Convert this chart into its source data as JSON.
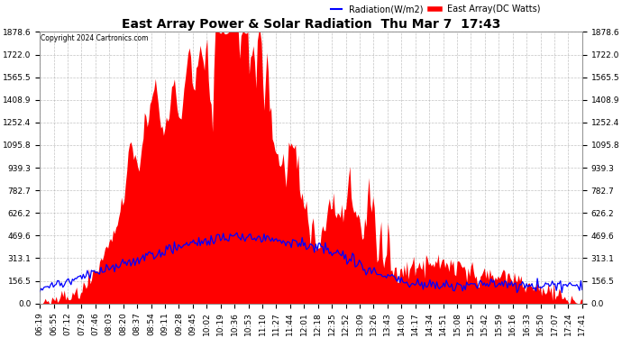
{
  "title": "East Array Power & Solar Radiation  Thu Mar 7  17:43",
  "copyright": "Copyright 2024 Cartronics.com",
  "legend_radiation": "Radiation(W/m2)",
  "legend_east": "East Array(DC Watts)",
  "radiation_color": "blue",
  "east_color": "red",
  "background_color": "#ffffff",
  "grid_color": "#aaaaaa",
  "ymax": 1878.6,
  "yticks": [
    0.0,
    156.5,
    313.1,
    469.6,
    626.2,
    782.7,
    939.3,
    1095.8,
    1252.4,
    1408.9,
    1565.5,
    1722.0,
    1878.6
  ],
  "xtick_labels": [
    "06:19",
    "06:55",
    "07:12",
    "07:29",
    "07:46",
    "08:03",
    "08:20",
    "08:37",
    "08:54",
    "09:11",
    "09:28",
    "09:45",
    "10:02",
    "10:19",
    "10:36",
    "10:53",
    "11:10",
    "11:27",
    "11:44",
    "12:01",
    "12:18",
    "12:35",
    "12:52",
    "13:09",
    "13:26",
    "13:43",
    "14:00",
    "14:17",
    "14:34",
    "14:51",
    "15:08",
    "15:25",
    "15:42",
    "15:59",
    "16:16",
    "16:33",
    "16:50",
    "17:07",
    "17:24",
    "17:41"
  ],
  "n_points": 400,
  "title_fontsize": 10,
  "tick_fontsize": 6.5
}
